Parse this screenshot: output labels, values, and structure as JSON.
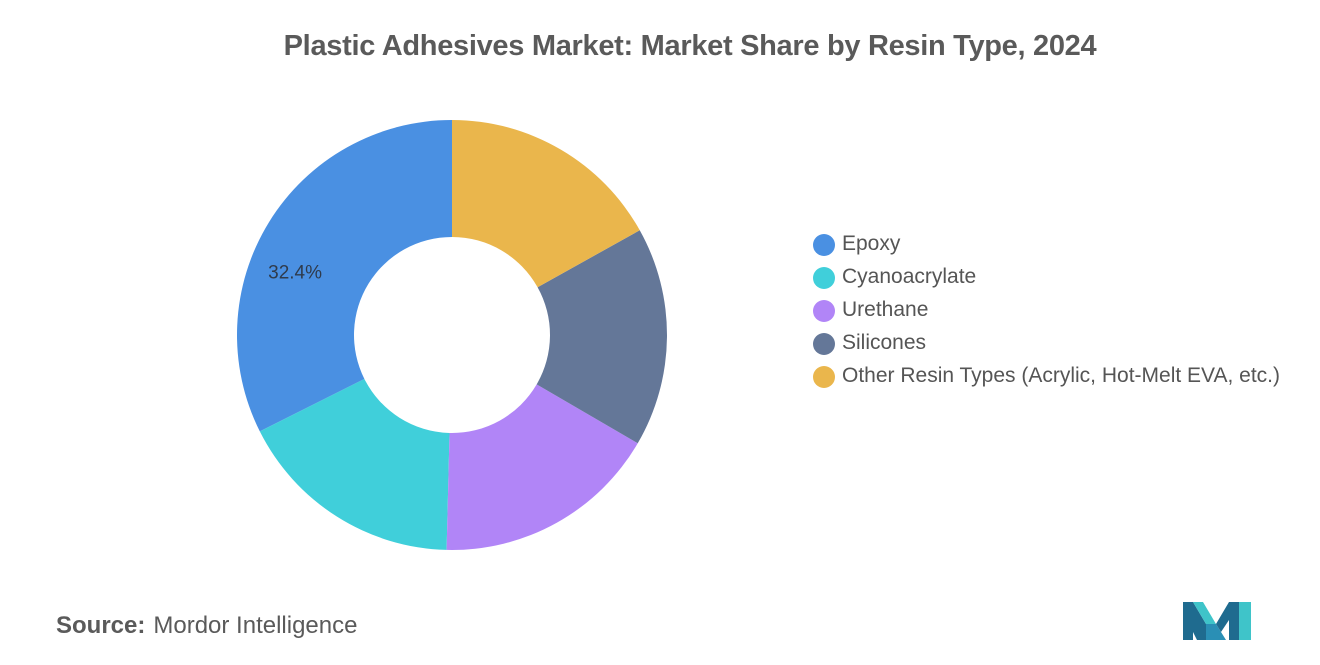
{
  "chart_data": {
    "type": "pie",
    "variant": "donut",
    "title": "Plastic Adhesives Market: Market Share by Resin Type, 2024",
    "categories": [
      "Epoxy",
      "Cyanoacrylate",
      "Urethane",
      "Silicones",
      "Other Resin Types (Acrylic, Hot-Melt EVA, etc.)"
    ],
    "values": [
      32.4,
      17.2,
      17.0,
      16.5,
      16.9
    ],
    "colors": [
      "#4a90e2",
      "#40cfda",
      "#b185f7",
      "#647798",
      "#eab64c"
    ],
    "data_labels": [
      {
        "category": "Epoxy",
        "text": "32.4%"
      }
    ],
    "legend_placement": "right"
  },
  "source": {
    "label": "Source:",
    "value": "Mordor Intelligence"
  },
  "logo": {
    "icon": "mordor-intelligence-logo",
    "colors": [
      "#1f6b8f",
      "#3fc4c9"
    ]
  }
}
